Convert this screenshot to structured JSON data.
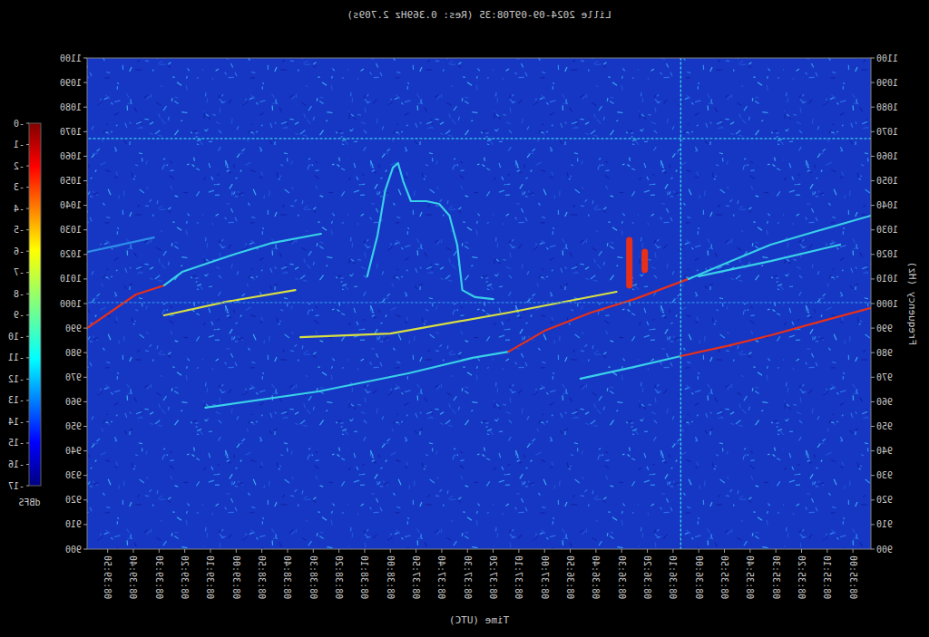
{
  "chart_data": {
    "type": "spectrogram",
    "title": "Lille 2024-09-09T08:35 (Res: 0.369Hz 2.709s)",
    "x_label": "Time (UTC)",
    "y_label": "Frequency (Hz)",
    "xlim": [
      30893,
      31198
    ],
    "ylim": [
      900,
      1100
    ],
    "grid": false,
    "xticks": [
      {
        "value": 30900,
        "label": "08:35:00"
      },
      {
        "value": 30910,
        "label": "08:35:10"
      },
      {
        "value": 30920,
        "label": "08:35:20"
      },
      {
        "value": 30930,
        "label": "08:35:30"
      },
      {
        "value": 30940,
        "label": "08:35:40"
      },
      {
        "value": 30950,
        "label": "08:35:50"
      },
      {
        "value": 30960,
        "label": "08:36:00"
      },
      {
        "value": 30970,
        "label": "08:36:10"
      },
      {
        "value": 30980,
        "label": "08:36:20"
      },
      {
        "value": 30990,
        "label": "08:36:30"
      },
      {
        "value": 31000,
        "label": "08:36:40"
      },
      {
        "value": 31010,
        "label": "08:36:50"
      },
      {
        "value": 31020,
        "label": "08:37:00"
      },
      {
        "value": 31030,
        "label": "08:37:10"
      },
      {
        "value": 31040,
        "label": "08:37:20"
      },
      {
        "value": 31050,
        "label": "08:37:30"
      },
      {
        "value": 31060,
        "label": "08:37:40"
      },
      {
        "value": 31070,
        "label": "08:37:50"
      },
      {
        "value": 31080,
        "label": "08:38:00"
      },
      {
        "value": 31090,
        "label": "08:38:10"
      },
      {
        "value": 31100,
        "label": "08:38:20"
      },
      {
        "value": 31110,
        "label": "08:38:30"
      },
      {
        "value": 31120,
        "label": "08:38:40"
      },
      {
        "value": 31130,
        "label": "08:38:50"
      },
      {
        "value": 31140,
        "label": "08:39:00"
      },
      {
        "value": 31150,
        "label": "08:39:10"
      },
      {
        "value": 31160,
        "label": "08:39:20"
      },
      {
        "value": 31170,
        "label": "08:39:30"
      },
      {
        "value": 31180,
        "label": "08:39:40"
      },
      {
        "value": 31190,
        "label": "08:39:50"
      }
    ],
    "yticks": [
      900,
      910,
      920,
      930,
      940,
      950,
      960,
      970,
      980,
      990,
      1000,
      1010,
      1020,
      1030,
      1040,
      1050,
      1060,
      1070,
      1080,
      1090,
      1100
    ],
    "colorbar": {
      "label": "dBFS",
      "range": [
        -17,
        0
      ],
      "ticks": [
        {
          "value": 0,
          "label": "-0"
        },
        -1,
        -2,
        -3,
        -4,
        -5,
        -6,
        -7,
        -8,
        -9,
        -10,
        -11,
        -12,
        -13,
        -14,
        -15,
        -16,
        -17
      ]
    },
    "series": [
      {
        "type": "line",
        "color": "#e83018",
        "x": [
          31168,
          31179,
          31198
        ],
        "values": [
          1007.4,
          1003.7,
          990.0
        ]
      },
      {
        "type": "line",
        "color": "#38d0e8",
        "x": [
          31107,
          31126,
          31140,
          31161,
          31168
        ],
        "values": [
          1028.4,
          1024.7,
          1020.3,
          1012.9,
          1007.4
        ]
      },
      {
        "type": "line",
        "color": "#2c8ce8",
        "x": [
          31172,
          31198
        ],
        "values": [
          1026.9,
          1021.0
        ]
      },
      {
        "type": "line",
        "color": "#d8e040",
        "x": [
          31117,
          31144,
          31168
        ],
        "values": [
          1005.5,
          1000.7,
          995.2
        ]
      },
      {
        "type": "line",
        "color": "#38d0e8",
        "x": [
          31034,
          31048,
          31073,
          31108,
          31152
        ],
        "values": [
          980.4,
          977.9,
          971.6,
          964.2,
          957.6
        ]
      },
      {
        "type": "line",
        "color": "#e83018",
        "x": [
          30964,
          30985,
          31002,
          31020,
          31034
        ],
        "values": [
          1010.0,
          1001.8,
          996.3,
          988.9,
          980.4
        ]
      },
      {
        "type": "line",
        "color": "#38d0e8",
        "x": [
          30893,
          30914,
          30932,
          30949,
          30964
        ],
        "values": [
          1035.8,
          1029.5,
          1024.0,
          1016.6,
          1010.0
        ]
      },
      {
        "type": "line",
        "color": "#d8e040",
        "x": [
          30992,
          31034,
          31080,
          31115
        ],
        "values": [
          1004.8,
          996.3,
          987.8,
          986.3
        ]
      },
      {
        "type": "line",
        "color": "#38d0e8",
        "x": [
          30967,
          30985,
          31006
        ],
        "values": [
          978.6,
          974.2,
          969.4
        ]
      },
      {
        "type": "line",
        "color": "#e83018",
        "x": [
          30893,
          30914,
          30932,
          30949,
          30967
        ],
        "values": [
          998.2,
          992.3,
          987.1,
          982.7,
          978.6
        ]
      },
      {
        "type": "line",
        "color": "#38d0e8",
        "x": [
          30905,
          30932,
          30960
        ],
        "values": [
          1024.0,
          1017.3,
          1011.1
        ]
      },
      {
        "type": "line",
        "color": "#38d0e8",
        "x": [
          31040,
          31047,
          31052,
          31054,
          31057,
          31061,
          31066,
          31072,
          31075,
          31077,
          31079,
          31082,
          31085,
          31089
        ],
        "values": [
          1001.8,
          1002.6,
          1005.5,
          1024.0,
          1035.8,
          1040.6,
          1041.7,
          1041.7,
          1049.8,
          1057.2,
          1055.4,
          1046.1,
          1027.7,
          1011.1
        ]
      },
      {
        "type": "line",
        "color": "#38d0e8",
        "line_style": "dotted",
        "x": [
          30893,
          31198
        ],
        "values": [
          1067.2,
          1067.2
        ]
      },
      {
        "type": "line",
        "color": "#2c8ce8",
        "line_style": "dotted",
        "x": [
          30893,
          31198
        ],
        "values": [
          1000.4,
          1000.4
        ]
      },
      {
        "type": "line",
        "color": "#38d0e8",
        "line_style": "dotted",
        "x": [
          30967,
          30967
        ],
        "values": [
          900,
          1100
        ]
      },
      {
        "type": "burst",
        "color": "#e83018",
        "x": [
          30987,
          30987
        ],
        "values": [
          1007.4,
          1025.8
        ]
      },
      {
        "type": "burst",
        "color": "#e83018",
        "x": [
          30981,
          30981
        ],
        "values": [
          1013.7,
          1021.0
        ]
      }
    ]
  }
}
